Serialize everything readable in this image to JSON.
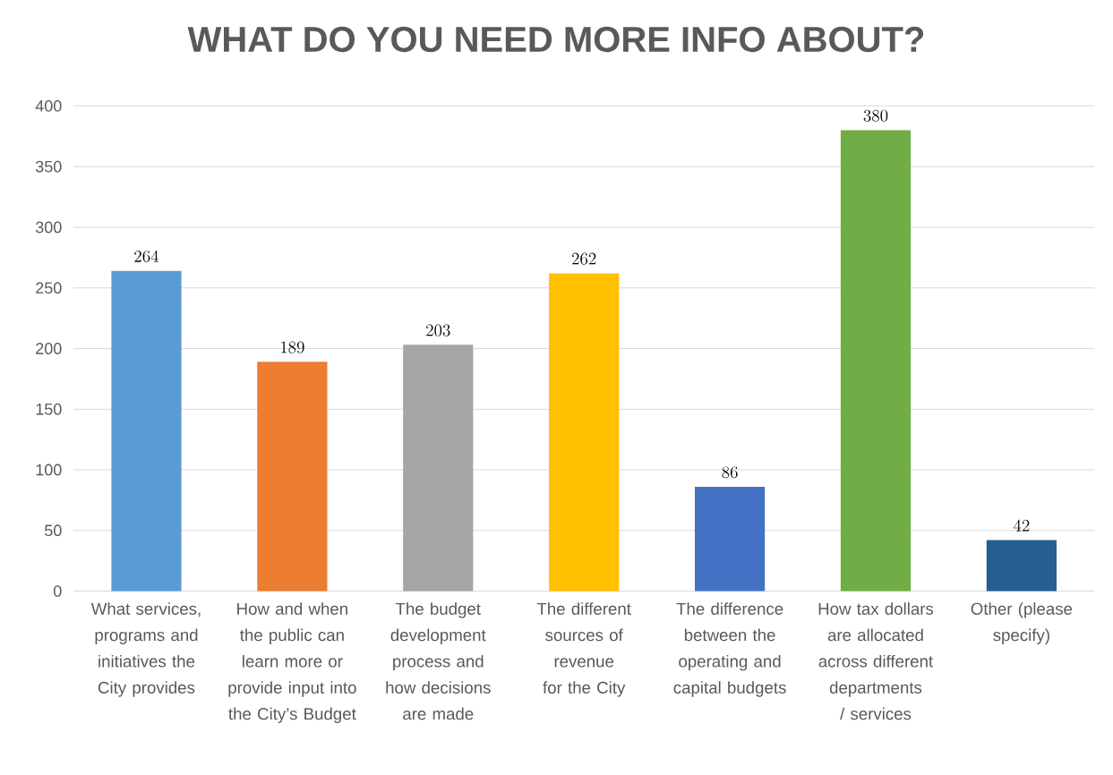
{
  "chart_data": {
    "type": "bar",
    "title": "WHAT DO YOU NEED MORE INFO ABOUT?",
    "categories": [
      "What services, programs and initiatives the City provides",
      "How and when the public can learn more or provide input into the City’s Budget",
      "The budget development process and how decisions are made",
      "The different sources of revenue for the City",
      "The difference between the operating and capital budgets",
      "How tax dollars are allocated across different departments / services",
      "Other (please specify)"
    ],
    "values": [
      264,
      189,
      203,
      262,
      86,
      380,
      42
    ],
    "colors": [
      "#5b9bd5",
      "#ed7d31",
      "#a5a5a5",
      "#ffc000",
      "#4472c4",
      "#70ad47",
      "#255e91"
    ],
    "ylim": [
      0,
      400
    ],
    "yticks": [
      0,
      50,
      100,
      150,
      200,
      250,
      300,
      350,
      400
    ],
    "grid": "y",
    "data_labels": true
  }
}
